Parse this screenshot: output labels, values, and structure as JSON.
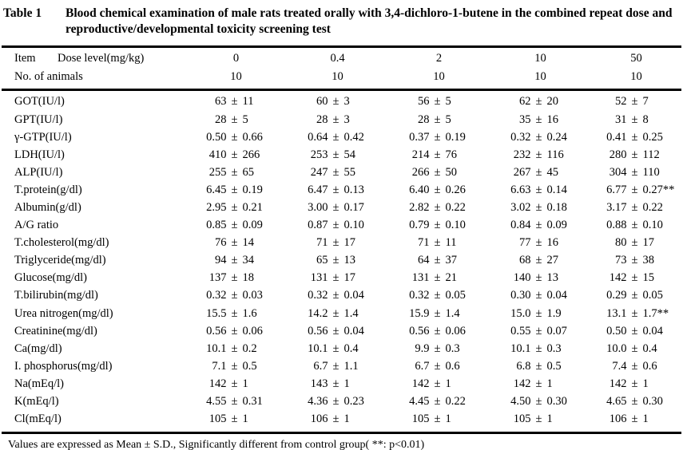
{
  "caption": {
    "label": "Table 1",
    "text": "Blood chemical examination of male rats treated orally with 3,4-dichloro-1-butene in the combined repeat dose and reproductive/developmental toxicity screening test"
  },
  "header": {
    "item_label": "Item",
    "dose_label": "Dose level(mg/kg)",
    "dose_levels": [
      "0",
      "0.4",
      "2",
      "10",
      "50"
    ],
    "animals_label": "No. of animals",
    "animals_counts": [
      "10",
      "10",
      "10",
      "10",
      "10"
    ]
  },
  "symbols": {
    "plus_minus": "±"
  },
  "rows": [
    {
      "label": "GOT(IU/l)",
      "cells": [
        {
          "mean": "63",
          "sd": "11"
        },
        {
          "mean": "60",
          "sd": "3"
        },
        {
          "mean": "56",
          "sd": "5"
        },
        {
          "mean": "62",
          "sd": "20"
        },
        {
          "mean": "52",
          "sd": "7"
        }
      ]
    },
    {
      "label": "GPT(IU/l)",
      "cells": [
        {
          "mean": "28",
          "sd": "5"
        },
        {
          "mean": "28",
          "sd": "3"
        },
        {
          "mean": "28",
          "sd": "5"
        },
        {
          "mean": "35",
          "sd": "16"
        },
        {
          "mean": "31",
          "sd": "8"
        }
      ]
    },
    {
      "label": "γ-GTP(IU/l)",
      "cells": [
        {
          "mean": "0.50",
          "sd": "0.66"
        },
        {
          "mean": "0.64",
          "sd": "0.42"
        },
        {
          "mean": "0.37",
          "sd": "0.19"
        },
        {
          "mean": "0.32",
          "sd": "0.24"
        },
        {
          "mean": "0.41",
          "sd": "0.25"
        }
      ]
    },
    {
      "label": "LDH(IU/l)",
      "cells": [
        {
          "mean": "410",
          "sd": "266"
        },
        {
          "mean": "253",
          "sd": "54"
        },
        {
          "mean": "214",
          "sd": "76"
        },
        {
          "mean": "232",
          "sd": "116"
        },
        {
          "mean": "280",
          "sd": "112"
        }
      ]
    },
    {
      "label": "ALP(IU/l)",
      "cells": [
        {
          "mean": "255",
          "sd": "65"
        },
        {
          "mean": "247",
          "sd": "55"
        },
        {
          "mean": "266",
          "sd": "50"
        },
        {
          "mean": "267",
          "sd": "45"
        },
        {
          "mean": "304",
          "sd": "110"
        }
      ]
    },
    {
      "label": "T.protein(g/dl)",
      "cells": [
        {
          "mean": "6.45",
          "sd": "0.19"
        },
        {
          "mean": "6.47",
          "sd": "0.13"
        },
        {
          "mean": "6.40",
          "sd": "0.26"
        },
        {
          "mean": "6.63",
          "sd": "0.14"
        },
        {
          "mean": "6.77",
          "sd": "0.27**"
        }
      ]
    },
    {
      "label": "Albumin(g/dl)",
      "cells": [
        {
          "mean": "2.95",
          "sd": "0.21"
        },
        {
          "mean": "3.00",
          "sd": "0.17"
        },
        {
          "mean": "2.82",
          "sd": "0.22"
        },
        {
          "mean": "3.02",
          "sd": "0.18"
        },
        {
          "mean": "3.17",
          "sd": "0.22"
        }
      ]
    },
    {
      "label": "A/G ratio",
      "cells": [
        {
          "mean": "0.85",
          "sd": "0.09"
        },
        {
          "mean": "0.87",
          "sd": "0.10"
        },
        {
          "mean": "0.79",
          "sd": "0.10"
        },
        {
          "mean": "0.84",
          "sd": "0.09"
        },
        {
          "mean": "0.88",
          "sd": "0.10"
        }
      ]
    },
    {
      "label": "T.cholesterol(mg/dl)",
      "cells": [
        {
          "mean": "76",
          "sd": "14"
        },
        {
          "mean": "71",
          "sd": "17"
        },
        {
          "mean": "71",
          "sd": "11"
        },
        {
          "mean": "77",
          "sd": "16"
        },
        {
          "mean": "80",
          "sd": "17"
        }
      ]
    },
    {
      "label": "Triglyceride(mg/dl)",
      "cells": [
        {
          "mean": "94",
          "sd": "34"
        },
        {
          "mean": "65",
          "sd": "13"
        },
        {
          "mean": "64",
          "sd": "37"
        },
        {
          "mean": "68",
          "sd": "27"
        },
        {
          "mean": "73",
          "sd": "38"
        }
      ]
    },
    {
      "label": "Glucose(mg/dl)",
      "cells": [
        {
          "mean": "137",
          "sd": "18"
        },
        {
          "mean": "131",
          "sd": "17"
        },
        {
          "mean": "131",
          "sd": "21"
        },
        {
          "mean": "140",
          "sd": "13"
        },
        {
          "mean": "142",
          "sd": "15"
        }
      ]
    },
    {
      "label": "T.bilirubin(mg/dl)",
      "cells": [
        {
          "mean": "0.32",
          "sd": "0.03"
        },
        {
          "mean": "0.32",
          "sd": "0.04"
        },
        {
          "mean": "0.32",
          "sd": "0.05"
        },
        {
          "mean": "0.30",
          "sd": "0.04"
        },
        {
          "mean": "0.29",
          "sd": "0.05"
        }
      ]
    },
    {
      "label": "Urea nitrogen(mg/dl)",
      "cells": [
        {
          "mean": "15.5",
          "sd": "1.6"
        },
        {
          "mean": "14.2",
          "sd": "1.4"
        },
        {
          "mean": "15.9",
          "sd": "1.4"
        },
        {
          "mean": "15.0",
          "sd": "1.9"
        },
        {
          "mean": "13.1",
          "sd": "1.7**"
        }
      ]
    },
    {
      "label": "Creatinine(mg/dl)",
      "cells": [
        {
          "mean": "0.56",
          "sd": "0.06"
        },
        {
          "mean": "0.56",
          "sd": "0.04"
        },
        {
          "mean": "0.56",
          "sd": "0.06"
        },
        {
          "mean": "0.55",
          "sd": "0.07"
        },
        {
          "mean": "0.50",
          "sd": "0.04"
        }
      ]
    },
    {
      "label": "Ca(mg/dl)",
      "cells": [
        {
          "mean": "10.1",
          "sd": "0.2"
        },
        {
          "mean": "10.1",
          "sd": "0.4"
        },
        {
          "mean": "9.9",
          "sd": "0.3"
        },
        {
          "mean": "10.1",
          "sd": "0.3"
        },
        {
          "mean": "10.0",
          "sd": "0.4"
        }
      ]
    },
    {
      "label": "I. phosphorus(mg/dl)",
      "cells": [
        {
          "mean": "7.1",
          "sd": "0.5"
        },
        {
          "mean": "6.7",
          "sd": "1.1"
        },
        {
          "mean": "6.7",
          "sd": "0.6"
        },
        {
          "mean": "6.8",
          "sd": "0.5"
        },
        {
          "mean": "7.4",
          "sd": "0.6"
        }
      ]
    },
    {
      "label": "Na(mEq/l)",
      "cells": [
        {
          "mean": "142",
          "sd": "1"
        },
        {
          "mean": "143",
          "sd": "1"
        },
        {
          "mean": "142",
          "sd": "1"
        },
        {
          "mean": "142",
          "sd": "1"
        },
        {
          "mean": "142",
          "sd": "1"
        }
      ]
    },
    {
      "label": "K(mEq/l)",
      "cells": [
        {
          "mean": "4.55",
          "sd": "0.31"
        },
        {
          "mean": "4.36",
          "sd": "0.23"
        },
        {
          "mean": "4.45",
          "sd": "0.22"
        },
        {
          "mean": "4.50",
          "sd": "0.30"
        },
        {
          "mean": "4.65",
          "sd": "0.30"
        }
      ]
    },
    {
      "label": "Cl(mEq/l)",
      "cells": [
        {
          "mean": "105",
          "sd": "1"
        },
        {
          "mean": "106",
          "sd": "1"
        },
        {
          "mean": "105",
          "sd": "1"
        },
        {
          "mean": "105",
          "sd": "1"
        },
        {
          "mean": "106",
          "sd": "1"
        }
      ]
    }
  ],
  "footnote": "Values are expressed as Mean ± S.D., Significantly different from control group( **: p<0.01)"
}
